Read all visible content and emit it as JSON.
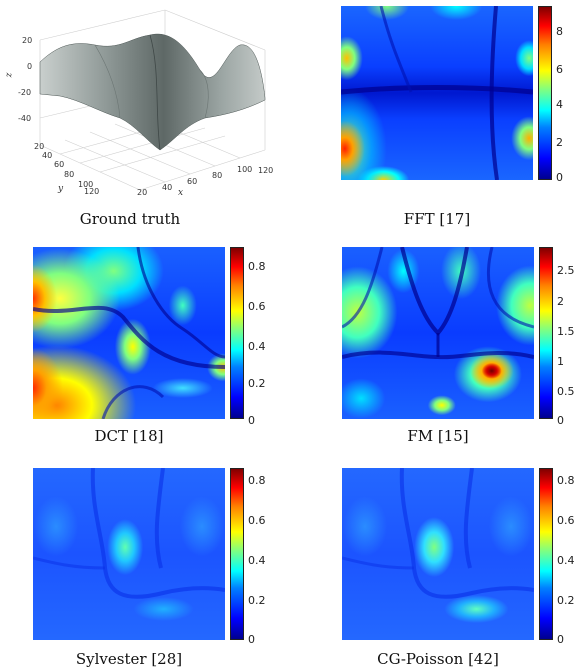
{
  "panels": {
    "ground_truth": {
      "caption": "Ground truth",
      "z_ticks": [
        "20",
        "0",
        "-20",
        "-40"
      ],
      "y_ticks": [
        "20",
        "40",
        "60",
        "80",
        "100",
        "120"
      ],
      "x_ticks": [
        "20",
        "40",
        "60",
        "80",
        "100",
        "120"
      ],
      "z_label": "z",
      "x_label": "x",
      "y_label": "y"
    },
    "fft": {
      "caption": "FFT [17]",
      "colorbar_ticks": [
        "8",
        "6",
        "4",
        "2",
        "0"
      ]
    },
    "dct": {
      "caption": "DCT [18]",
      "colorbar_ticks": [
        "0.8",
        "0.6",
        "0.4",
        "0.2",
        "0"
      ]
    },
    "fm": {
      "caption": "FM [15]",
      "colorbar_ticks": [
        "2.5",
        "2",
        "1.5",
        "1",
        "0.5",
        "0"
      ]
    },
    "sylvester": {
      "caption": "Sylvester [28]",
      "colorbar_ticks": [
        "0.8",
        "0.6",
        "0.4",
        "0.2",
        "0"
      ]
    },
    "cg_poisson": {
      "caption": "CG-Poisson [42]",
      "colorbar_ticks": [
        "0.8",
        "0.6",
        "0.4",
        "0.2",
        "0"
      ]
    }
  },
  "colors": {
    "low": "#0000c8",
    "mid": "#00ffff",
    "high": "#ff0000"
  }
}
